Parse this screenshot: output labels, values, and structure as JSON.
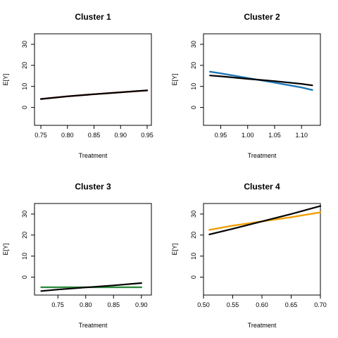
{
  "chart_data": [
    {
      "type": "line",
      "title": "Cluster 1",
      "xlabel": "Treatment",
      "ylabel": "E[Y]",
      "xlim": [
        0.738,
        0.958
      ],
      "ylim": [
        -8.5,
        35
      ],
      "xticks": [
        "0.75",
        "0.80",
        "0.85",
        "0.90",
        "0.95"
      ],
      "yticks": [
        "0",
        "10",
        "20",
        "30"
      ],
      "series": [
        {
          "color": "#c0392b",
          "x": [
            0.75,
            0.8,
            0.85,
            0.9,
            0.93,
            0.95
          ],
          "y": [
            4.0,
            5.3,
            6.3,
            7.2,
            7.7,
            8.1
          ]
        },
        {
          "color": "#000000",
          "x": [
            0.75,
            0.8,
            0.85,
            0.9,
            0.93,
            0.95
          ],
          "y": [
            4.0,
            5.3,
            6.3,
            7.2,
            7.8,
            8.1
          ]
        }
      ]
    },
    {
      "type": "line",
      "title": "Cluster 2",
      "xlabel": "Treatment",
      "ylabel": "E[Y]",
      "xlim": [
        0.918,
        1.135
      ],
      "ylim": [
        -8.5,
        35
      ],
      "xticks": [
        "0.95",
        "1.00",
        "1.05",
        "1.10"
      ],
      "yticks": [
        "0",
        "10",
        "20",
        "30"
      ],
      "series": [
        {
          "color": "#1f77b4",
          "x": [
            0.93,
            0.95,
            1.0,
            1.05,
            1.1,
            1.12
          ],
          "y": [
            17.0,
            16.2,
            14.0,
            11.8,
            9.5,
            8.3
          ]
        },
        {
          "color": "#000000",
          "x": [
            0.93,
            0.95,
            1.0,
            1.05,
            1.1,
            1.12
          ],
          "y": [
            15.2,
            14.8,
            13.6,
            12.5,
            11.2,
            10.5
          ]
        }
      ]
    },
    {
      "type": "line",
      "title": "Cluster 3",
      "xlabel": "Treatment",
      "ylabel": "E[Y]",
      "xlim": [
        0.708,
        0.918
      ],
      "ylim": [
        -8.5,
        35
      ],
      "xticks": [
        "0.75",
        "0.80",
        "0.85",
        "0.90"
      ],
      "yticks": [
        "0",
        "10",
        "20",
        "30"
      ],
      "series": [
        {
          "color": "#2e8b3e",
          "x": [
            0.72,
            0.9
          ],
          "y": [
            -4.8,
            -4.8
          ]
        },
        {
          "color": "#000000",
          "x": [
            0.72,
            0.75,
            0.8,
            0.85,
            0.9
          ],
          "y": [
            -6.6,
            -5.9,
            -4.9,
            -3.9,
            -2.8
          ]
        }
      ]
    },
    {
      "type": "line",
      "title": "Cluster 4",
      "xlabel": "Treatment",
      "ylabel": "E[Y]",
      "xlim": [
        0.5,
        0.7
      ],
      "ylim": [
        -8.5,
        35
      ],
      "xticks": [
        "0.50",
        "0.55",
        "0.60",
        "0.65",
        "0.70"
      ],
      "yticks": [
        "0",
        "10",
        "20",
        "30"
      ],
      "series": [
        {
          "color": "#f0a000",
          "x": [
            0.51,
            0.55,
            0.6,
            0.65,
            0.7
          ],
          "y": [
            22.5,
            24.5,
            26.5,
            28.5,
            30.8
          ]
        },
        {
          "color": "#000000",
          "x": [
            0.51,
            0.55,
            0.6,
            0.65,
            0.7
          ],
          "y": [
            20.3,
            23.0,
            26.5,
            30.0,
            33.8
          ]
        }
      ]
    }
  ]
}
